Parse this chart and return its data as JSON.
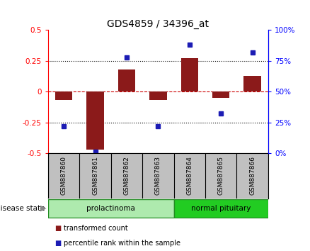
{
  "title": "GDS4859 / 34396_at",
  "samples": [
    "GSM887860",
    "GSM887861",
    "GSM887862",
    "GSM887863",
    "GSM887864",
    "GSM887865",
    "GSM887866"
  ],
  "transformed_count": [
    -0.07,
    -0.47,
    0.18,
    -0.07,
    0.27,
    -0.05,
    0.13
  ],
  "percentile_rank": [
    22,
    1,
    78,
    22,
    88,
    32,
    82
  ],
  "ylim_left": [
    -0.5,
    0.5
  ],
  "ylim_right": [
    0,
    100
  ],
  "yticks_left": [
    -0.5,
    -0.25,
    0,
    0.25,
    0.5
  ],
  "yticks_right": [
    0,
    25,
    50,
    75,
    100
  ],
  "ytick_labels_left": [
    "-0.5",
    "-0.25",
    "0",
    "0.25",
    "0.5"
  ],
  "ytick_labels_right": [
    "0%",
    "25%",
    "50%",
    "75%",
    "100%"
  ],
  "bar_color": "#8B1A1A",
  "square_color": "#1C1CB4",
  "zero_line_color": "#CC0000",
  "dotted_line_color": "#000000",
  "disease_groups": [
    {
      "label": "prolactinoma",
      "indices": [
        0,
        1,
        2,
        3
      ],
      "color": "#AEEAAE",
      "border_color": "#228B22"
    },
    {
      "label": "normal pituitary",
      "indices": [
        4,
        5,
        6
      ],
      "color": "#22CC22",
      "border_color": "#228B22"
    }
  ],
  "disease_state_label": "disease state",
  "legend_items": [
    {
      "label": "transformed count",
      "color": "#8B1A1A"
    },
    {
      "label": "percentile rank within the sample",
      "color": "#1C1CB4"
    }
  ],
  "background_color": "#FFFFFF",
  "sample_label_bg": "#C0C0C0",
  "plot_border_color": "#000000"
}
